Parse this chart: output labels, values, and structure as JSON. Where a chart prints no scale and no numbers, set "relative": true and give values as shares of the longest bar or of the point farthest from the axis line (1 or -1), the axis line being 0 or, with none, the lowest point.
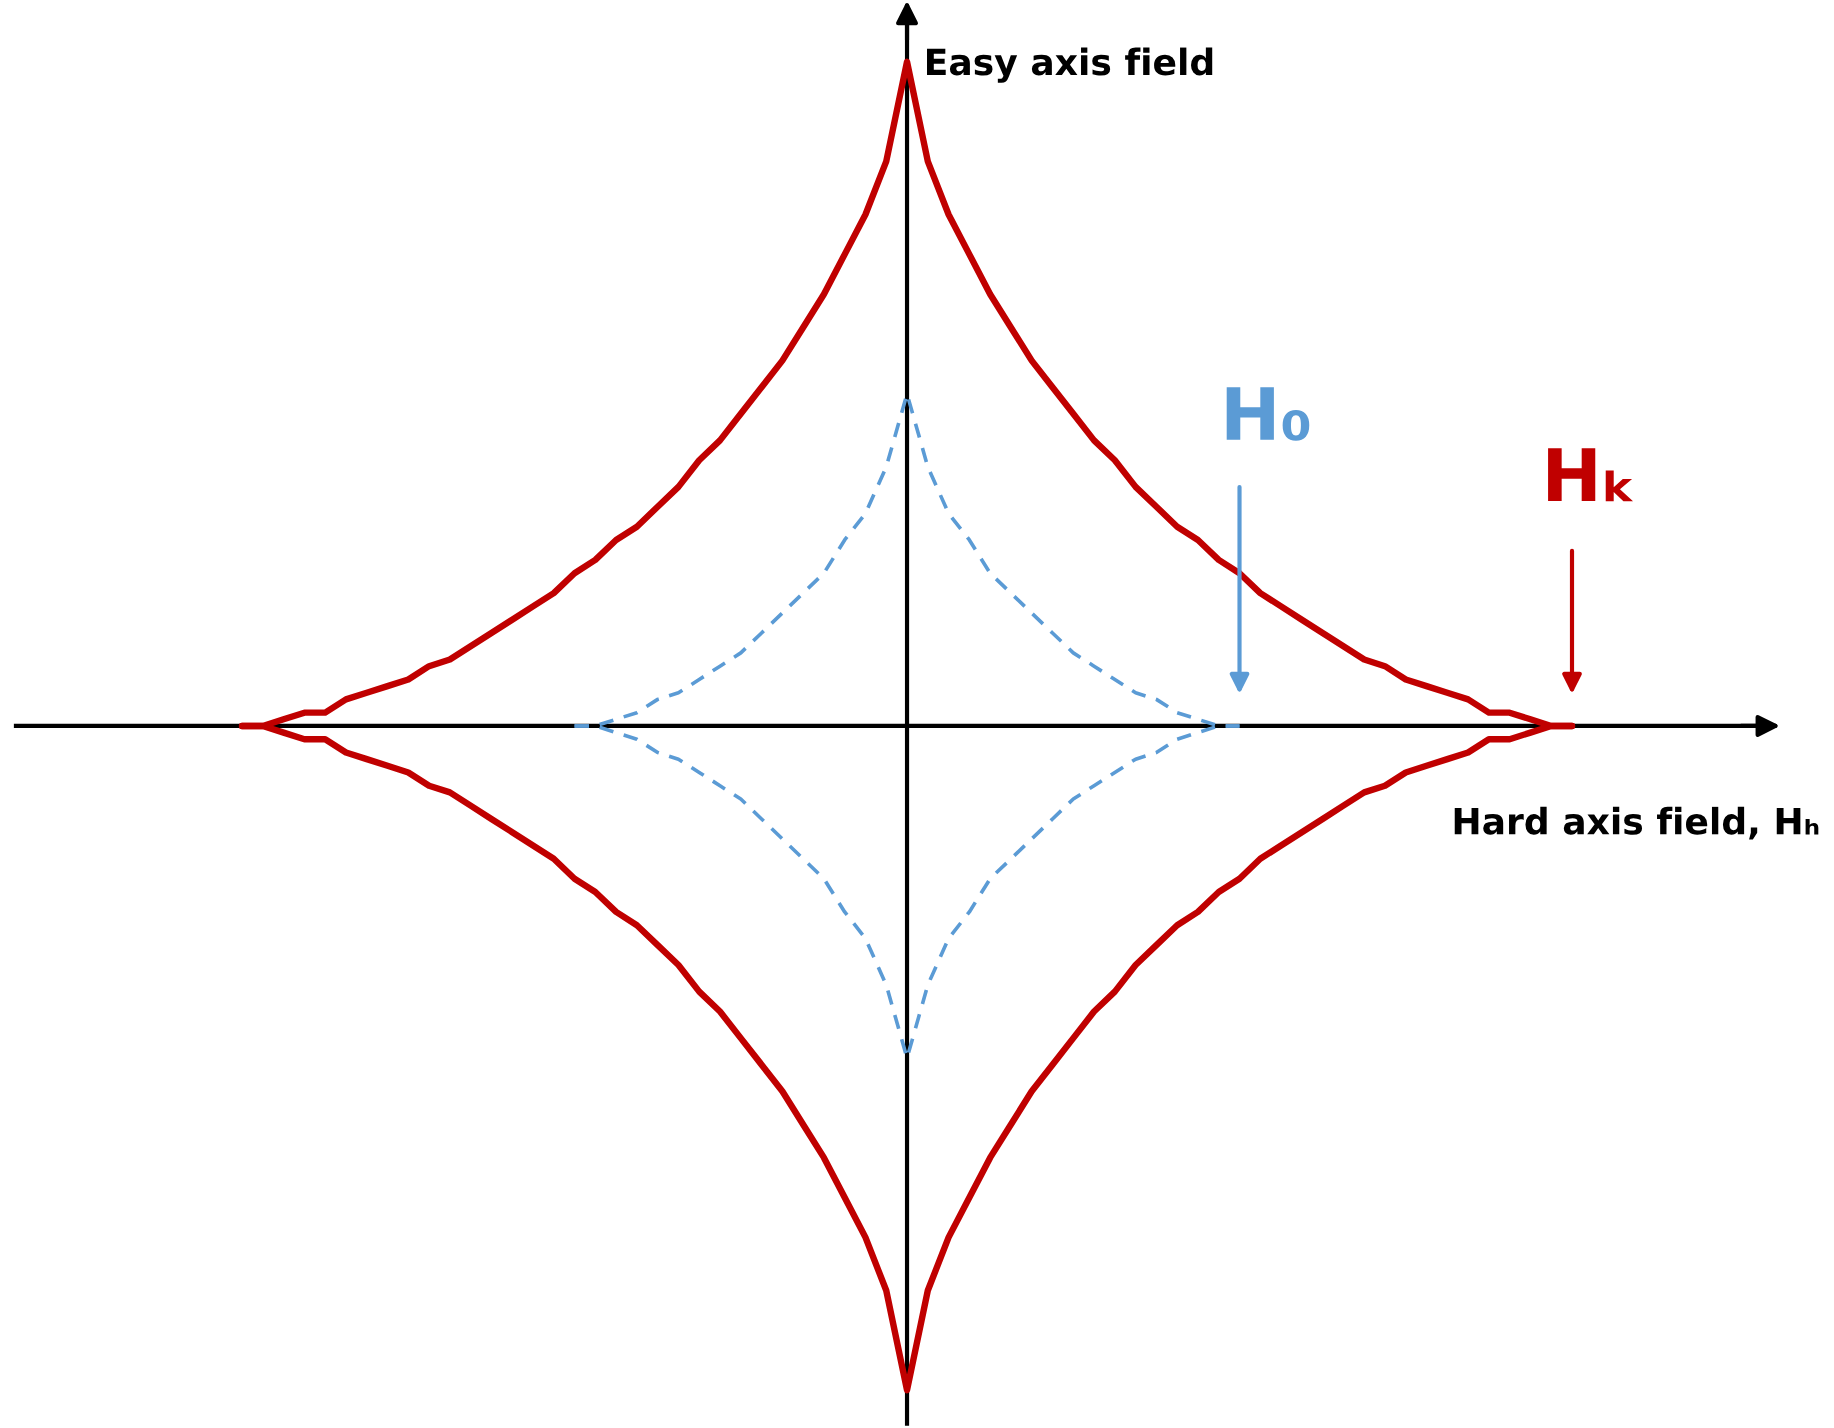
{
  "chart_data": {
    "type": "line",
    "relative": true,
    "line_style": "solid",
    "xlabel": "Hard axis field, Hₕ",
    "ylabel": "Easy axis field",
    "categories": [
      null,
      null,
      null,
      null,
      null,
      null,
      null,
      null,
      null,
      null,
      null,
      null,
      null,
      null,
      null,
      null,
      null,
      null,
      null,
      null,
      null,
      null,
      null,
      null,
      null,
      null,
      null,
      null,
      null,
      null,
      null,
      null,
      null,
      null,
      null,
      null,
      null,
      null,
      null,
      null,
      null,
      null,
      null,
      null,
      null,
      null,
      null,
      null,
      null,
      null,
      null,
      null,
      null,
      null,
      null,
      null,
      null,
      null,
      null,
      null,
      null,
      null,
      null,
      null,
      null
    ],
    "series": [
      {
        "color": "#c00000",
        "values": [
          0,
          0,
          0.01,
          0.02,
          0.02,
          0.04,
          0.05,
          0.06,
          0.07,
          0.09,
          0.1,
          0.12,
          0.14,
          0.16,
          0.18,
          0.2,
          0.23,
          0.25,
          0.28,
          0.3,
          0.33,
          0.36,
          0.4,
          0.43,
          0.47,
          0.51,
          0.55,
          0.6,
          0.65,
          0.71,
          0.77,
          0.85,
          1,
          0.85,
          0.77,
          0.71,
          0.65,
          0.6,
          0.55,
          0.51,
          0.47,
          0.43,
          0.4,
          0.36,
          0.33,
          0.3,
          0.28,
          0.25,
          0.23,
          0.2,
          0.18,
          0.16,
          0.14,
          0.12,
          0.1,
          0.09,
          0.07,
          0.06,
          0.05,
          0.04,
          0.02,
          0.02,
          0.01,
          0,
          0
        ]
      },
      {
        "color": "#c00000",
        "values": [
          0,
          0,
          -0.01,
          -0.02,
          -0.02,
          -0.04,
          -0.05,
          -0.06,
          -0.07,
          -0.09,
          -0.1,
          -0.12,
          -0.14,
          -0.16,
          -0.18,
          -0.2,
          -0.23,
          -0.25,
          -0.28,
          -0.3,
          -0.33,
          -0.36,
          -0.4,
          -0.43,
          -0.47,
          -0.51,
          -0.55,
          -0.6,
          -0.65,
          -0.71,
          -0.77,
          -0.85,
          -1,
          -0.85,
          -0.77,
          -0.71,
          -0.65,
          -0.6,
          -0.55,
          -0.51,
          -0.47,
          -0.43,
          -0.4,
          -0.36,
          -0.33,
          -0.3,
          -0.28,
          -0.25,
          -0.23,
          -0.2,
          -0.18,
          -0.16,
          -0.14,
          -0.12,
          -0.1,
          -0.09,
          -0.07,
          -0.06,
          -0.05,
          -0.04,
          -0.02,
          -0.02,
          -0.01,
          0,
          0
        ]
      },
      {
        "color": "#5b9bd5",
        "line_style": "dashed",
        "values": [
          null,
          null,
          null,
          null,
          null,
          null,
          null,
          null,
          null,
          null,
          null,
          null,
          null,
          null,
          null,
          null,
          0,
          0,
          0.01,
          0.02,
          0.04,
          0.05,
          0.07,
          0.09,
          0.11,
          0.14,
          0.17,
          0.2,
          0.23,
          0.28,
          0.32,
          0.39,
          0.5,
          0.39,
          0.32,
          0.28,
          0.23,
          0.2,
          0.17,
          0.14,
          0.11,
          0.09,
          0.07,
          0.05,
          0.04,
          0.02,
          0.01,
          0,
          0,
          null,
          null,
          null,
          null,
          null,
          null,
          null,
          null,
          null,
          null,
          null,
          null,
          null,
          null,
          null,
          null
        ]
      },
      {
        "color": "#5b9bd5",
        "line_style": "dashed",
        "values": [
          null,
          null,
          null,
          null,
          null,
          null,
          null,
          null,
          null,
          null,
          null,
          null,
          null,
          null,
          null,
          null,
          0,
          0,
          -0.01,
          -0.02,
          -0.04,
          -0.05,
          -0.07,
          -0.09,
          -0.11,
          -0.14,
          -0.17,
          -0.2,
          -0.23,
          -0.28,
          -0.32,
          -0.39,
          -0.5,
          -0.39,
          -0.32,
          -0.28,
          -0.23,
          -0.2,
          -0.17,
          -0.14,
          -0.11,
          -0.09,
          -0.07,
          -0.05,
          -0.04,
          -0.02,
          -0.01,
          0,
          0,
          null,
          null,
          null,
          null,
          null,
          null,
          null,
          null,
          null,
          null,
          null,
          null,
          null,
          null,
          null,
          null
        ]
      }
    ],
    "annotations": [
      "H₀",
      "Hₖ"
    ]
  }
}
